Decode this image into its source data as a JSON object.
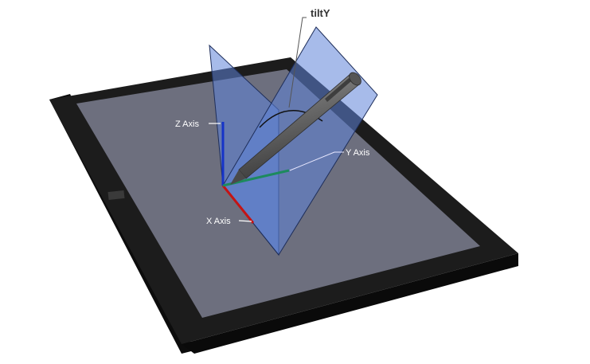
{
  "diagram": {
    "title": "tiltY",
    "labels": {
      "z_axis": "Z Axis",
      "y_axis": "Y Axis",
      "x_axis": "X Axis"
    }
  },
  "colors": {
    "tablet_frame": "#1c1c1c",
    "tablet_side": "#0c0c0c",
    "tablet_screen": "#6d6f7e",
    "plane_fill": "#5f83d8",
    "plane_edge": "#1e2e5a",
    "z_axis": "#1533c8",
    "x_axis": "#c41414",
    "y_axis": "#1d8a5e",
    "pen_body": "#6c6c6c",
    "leader_line": "#555555"
  }
}
